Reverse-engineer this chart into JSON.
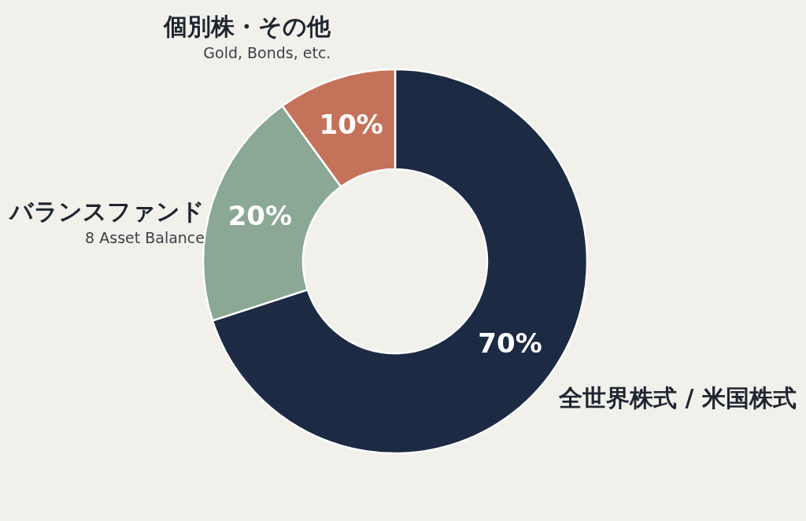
{
  "chart_data": {
    "type": "donut",
    "categories": [
      "全世界株式 / 米国株式",
      "バランスファンド",
      "個別株・その他"
    ],
    "values": [
      70,
      20,
      10
    ],
    "colors": [
      "#1d2a44",
      "#8aa893",
      "#c4735a"
    ],
    "value_labels": [
      "70%",
      "20%",
      "10%"
    ],
    "annotations": [
      {
        "text": "8 Asset Balance",
        "x": "バランスファンド"
      },
      {
        "text": "Gold, Bonds, etc.",
        "x": "個別株・その他"
      }
    ]
  }
}
